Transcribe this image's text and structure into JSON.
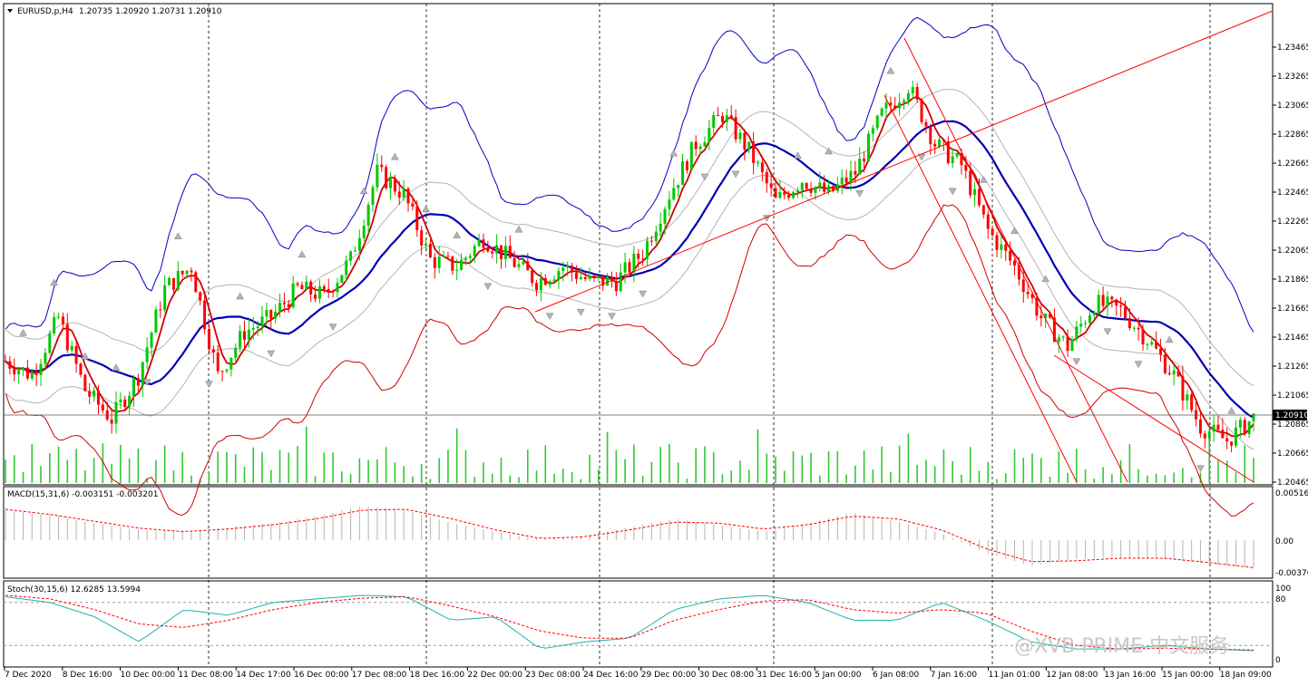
{
  "header": {
    "symbol": "EURUSD,p,H4",
    "ohlc": "1.20735 1.20920 1.20731 1.20910"
  },
  "current_price": "1.20910",
  "watermark": "@XVB PRIME 中文服务",
  "colors": {
    "bull": "#00c800",
    "bear": "#ff0000",
    "ma_fast": "#d00000",
    "ma_mid": "#0000b4",
    "bb_upper": "#0000c8",
    "bb_lower": "#d00000",
    "envelope": "#b4b4b4",
    "volume": "#32c832",
    "macd_hist": "#b4b4b4",
    "macd_signal": "#ff0000",
    "stoch_main": "#20b2aa",
    "stoch_signal": "#ff0000",
    "trendline": "#ff0000",
    "grid_vertical": "#000000",
    "current_line": "#404040"
  },
  "chart_data": [
    {
      "type": "candlestick",
      "panel": "main",
      "title": "EURUSD,p,H4",
      "y_ticks": [
        "1.23465",
        "1.23265",
        "1.23065",
        "1.22865",
        "1.22665",
        "1.22465",
        "1.22265",
        "1.22065",
        "1.21865",
        "1.21665",
        "1.21465",
        "1.21265",
        "1.21065",
        "1.20865",
        "1.20665",
        "1.20465"
      ],
      "ylim": [
        1.20465,
        1.23565
      ],
      "x_labels": [
        "7 Dec 2020",
        "8 Dec 16:00",
        "10 Dec 00:00",
        "11 Dec 08:00",
        "14 Dec 17:00",
        "16 Dec 00:00",
        "17 Dec 08:00",
        "18 Dec 16:00",
        "22 Dec 00:00",
        "23 Dec 08:00",
        "24 Dec 16:00",
        "29 Dec 00:00",
        "30 Dec 08:00",
        "31 Dec 16:00",
        "5 Jan 00:00",
        "6 Jan 08:00",
        "7 Jan 16:00",
        "11 Jan 01:00",
        "12 Jan 08:00",
        "13 Jan 16:00",
        "15 Jan 00:00",
        "18 Jan 09:00"
      ],
      "last_close": 1.2091,
      "indicators": [
        "Bollinger Bands (upper/lower)",
        "Moving averages (fast red, slow blue)",
        "Envelopes (gray)",
        "Volume",
        "Fractals"
      ],
      "series_path": [
        [
          0,
          1.213
        ],
        [
          6,
          1.212
        ],
        [
          12,
          1.216
        ],
        [
          18,
          1.211
        ],
        [
          24,
          1.209
        ],
        [
          30,
          1.212
        ],
        [
          36,
          1.218
        ],
        [
          42,
          1.2195
        ],
        [
          48,
          1.212
        ],
        [
          54,
          1.215
        ],
        [
          60,
          1.216
        ],
        [
          66,
          1.218
        ],
        [
          72,
          1.2175
        ],
        [
          78,
          1.22
        ],
        [
          84,
          1.226
        ],
        [
          90,
          1.2245
        ],
        [
          96,
          1.22
        ],
        [
          102,
          1.2195
        ],
        [
          108,
          1.2215
        ],
        [
          114,
          1.22
        ],
        [
          120,
          1.2185
        ],
        [
          126,
          1.2195
        ],
        [
          132,
          1.2185
        ],
        [
          138,
          1.2185
        ],
        [
          144,
          1.2205
        ],
        [
          150,
          1.2245
        ],
        [
          156,
          1.228
        ],
        [
          162,
          1.23
        ],
        [
          168,
          1.2275
        ],
        [
          174,
          1.224
        ],
        [
          180,
          1.2255
        ],
        [
          186,
          1.2245
        ],
        [
          192,
          1.226
        ],
        [
          198,
          1.23
        ],
        [
          204,
          1.232
        ],
        [
          210,
          1.228
        ],
        [
          216,
          1.2265
        ],
        [
          222,
          1.222
        ],
        [
          228,
          1.2195
        ],
        [
          234,
          1.216
        ],
        [
          240,
          1.214
        ],
        [
          246,
          1.217
        ],
        [
          252,
          1.2165
        ],
        [
          258,
          1.2145
        ],
        [
          264,
          1.212
        ],
        [
          270,
          1.2085
        ],
        [
          276,
          1.2075
        ],
        [
          282,
          1.2091
        ]
      ]
    },
    {
      "type": "line",
      "panel": "macd",
      "title": "MACD(15,31,6) -0.003151 -0.003201",
      "y_ticks": [
        "0.005162",
        "0.00",
        "-0.00370"
      ],
      "ylim": [
        -0.004,
        0.0055
      ],
      "series": [
        {
          "name": "MACD",
          "values": [
            0.0035,
            0.003,
            0.002,
            0.0012,
            0.001,
            0.0015,
            0.002,
            0.0028,
            0.004,
            0.0035,
            0.002,
            0.001,
            0.0001,
            0.0005,
            0.0015,
            0.0025,
            0.0018,
            0.001,
            0.002,
            0.0032,
            0.0022,
            0.0008,
            -0.0015,
            -0.003,
            -0.0022,
            -0.002,
            -0.0022,
            -0.0028,
            -0.0032
          ]
        },
        {
          "name": "Signal",
          "values": [
            0.0036,
            0.003,
            0.0022,
            0.0014,
            0.001,
            0.0013,
            0.0018,
            0.0025,
            0.0035,
            0.0036,
            0.0025,
            0.0012,
            0.0002,
            0.0004,
            0.0012,
            0.0021,
            0.002,
            0.0013,
            0.0018,
            0.0028,
            0.0025,
            0.0012,
            -0.001,
            -0.0025,
            -0.0024,
            -0.0021,
            -0.0021,
            -0.0026,
            -0.0032
          ]
        }
      ]
    },
    {
      "type": "line",
      "panel": "stochastic",
      "title": "Stoch(30,15,6) 12.6285 13.5994",
      "y_ticks": [
        "100",
        "80",
        "0"
      ],
      "ylim": [
        0,
        100
      ],
      "series": [
        {
          "name": "%K",
          "values": [
            88,
            80,
            60,
            25,
            70,
            62,
            80,
            85,
            90,
            88,
            55,
            60,
            15,
            25,
            30,
            70,
            85,
            90,
            80,
            55,
            55,
            80,
            55,
            25,
            15,
            15,
            20,
            15,
            12.6
          ]
        },
        {
          "name": "%D",
          "values": [
            90,
            85,
            70,
            50,
            45,
            55,
            70,
            80,
            86,
            88,
            75,
            60,
            40,
            30,
            30,
            55,
            70,
            82,
            84,
            70,
            65,
            70,
            65,
            40,
            20,
            15,
            16,
            15,
            13.6
          ]
        }
      ]
    }
  ]
}
